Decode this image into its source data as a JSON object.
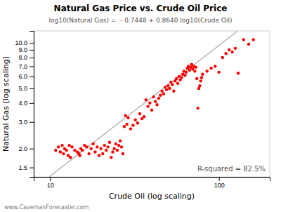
{
  "chart_data": {
    "type": "scatter",
    "title": "Natural Gas Price vs. Crude Oil Price",
    "subtitle": "log10(Natural Gas) =  - 0.7448 + 0.8640 log10(Crude Oil)",
    "x_label": "Crude Oil (log scaling)",
    "y_label": "Natural Gas (log scaling)",
    "annotations": [
      "R-squared = 82.5%",
      "www.CavemanForecaster.com"
    ],
    "log": true,
    "grid": false,
    "xlim": [
      8,
      200
    ],
    "ylim": [
      1.3,
      12
    ],
    "xticks": [
      10,
      100
    ],
    "yticks": [
      1.5,
      {
        "value": 2.0,
        "label": "2.0"
      },
      {
        "value": 3.0,
        "label": "3.0"
      },
      {
        "value": 4.0,
        "label": "4.0"
      },
      {
        "value": 5.0,
        "label": "5.0"
      },
      {
        "value": 6.0,
        "label": "6.0"
      },
      {
        "value": 7.0,
        "label": "7.0"
      },
      {
        "value": 8.0,
        "label": "8.0"
      },
      {
        "value": 9.0,
        "label": "9.0"
      },
      {
        "value": 10.0,
        "label": "10.0"
      }
    ],
    "series": [
      {
        "type": "line",
        "color": "#aaaaaa",
        "x": [
          9.861,
          129.15
        ],
        "values": [
          1.3,
          12
        ]
      },
      {
        "type": "scatter",
        "color": "#ff0000",
        "x": [
          10.8,
          11.2,
          11.5,
          11.8,
          12.0,
          12.2,
          12.5,
          12.8,
          13.0,
          13.2,
          13.5,
          14.0,
          14.5,
          14.8,
          15.0,
          15.2,
          15.5,
          16.0,
          16.5,
          17.0,
          17.5,
          18.0,
          18.5,
          19.0,
          19.5,
          20.0,
          20.5,
          21.0,
          21.5,
          22.0,
          22.5,
          23.0,
          23.5,
          24.0,
          24.5,
          25.0,
          25.5,
          26.0,
          26.5,
          27.0,
          27.5,
          28.0,
          28.5,
          29.0,
          30.0,
          31.0,
          32.0,
          33.0,
          34.0,
          35.0,
          36.0,
          37.0,
          38.0,
          39.0,
          40.0,
          41.0,
          42.0,
          43.0,
          44.0,
          45.0,
          46.0,
          47.0,
          48.0,
          49.0,
          50.0,
          51.0,
          52.0,
          53.0,
          54.0,
          55.0,
          56.0,
          57.0,
          58.0,
          59.0,
          60.0,
          61.0,
          62.0,
          63.0,
          64.0,
          65.0,
          66.0,
          67.0,
          68.0,
          69.0,
          70.0,
          71.0,
          72.0,
          73.0,
          74.0,
          75.0,
          76.0,
          77.0,
          78.0,
          79.0,
          80.0,
          85.0,
          90.0,
          95.0,
          100.0,
          105.0,
          110.0,
          115.0,
          120.0,
          125.0,
          130.0,
          140.0,
          150.0,
          160.0
        ],
        "values": [
          1.95,
          2.05,
          1.9,
          2.1,
          1.85,
          2.0,
          1.95,
          1.8,
          2.1,
          1.75,
          2.05,
          1.95,
          1.9,
          1.85,
          1.8,
          2.0,
          1.95,
          2.1,
          2.05,
          1.85,
          2.0,
          2.15,
          1.9,
          2.05,
          1.8,
          2.0,
          1.85,
          2.1,
          1.95,
          2.05,
          2.2,
          1.75,
          1.9,
          2.0,
          2.15,
          1.95,
          2.1,
          2.25,
          2.05,
          1.85,
          2.8,
          3.3,
          2.9,
          3.2,
          2.7,
          2.85,
          3.1,
          2.95,
          3.4,
          3.15,
          3.25,
          4.2,
          3.8,
          4.0,
          3.6,
          4.4,
          4.1,
          3.9,
          4.3,
          4.5,
          4.8,
          4.6,
          5.1,
          4.9,
          5.2,
          5.0,
          5.5,
          5.3,
          4.8,
          5.6,
          5.8,
          5.4,
          6.0,
          5.7,
          5.9,
          6.2,
          6.5,
          6.1,
          6.4,
          6.8,
          7.0,
          6.6,
          6.9,
          7.2,
          6.7,
          7.0,
          6.5,
          6.9,
          5.8,
          3.7,
          5.0,
          5.2,
          5.6,
          5.9,
          6.2,
          6.5,
          6.8,
          7.0,
          6.4,
          8.0,
          8.5,
          9.0,
          8.7,
          9.2,
          6.3,
          10.5,
          9.8,
          10.5
        ]
      }
    ]
  }
}
